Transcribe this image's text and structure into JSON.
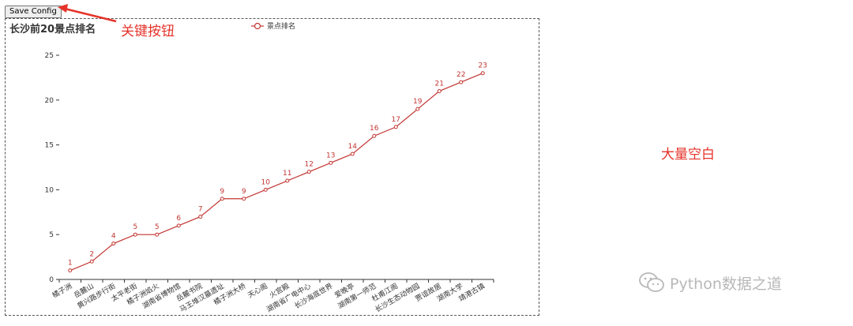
{
  "toolbar": {
    "save_label": "Save Config"
  },
  "annotations": {
    "key_button": "关键按钮",
    "blank_area": "大量空白"
  },
  "watermark": {
    "text": "Python数据之道",
    "icon": "wechat-icon"
  },
  "colors": {
    "series": "#c23531",
    "annotation": "#e5332a",
    "axis": "#333333"
  },
  "chart_data": {
    "type": "line",
    "title": "长沙前20景点排名",
    "legend": {
      "entries": [
        "景点排名"
      ],
      "placement": "top-center"
    },
    "categories": [
      "橘子洲",
      "岳麓山",
      "黄兴路步行街",
      "太平老街",
      "橘子洲焰火",
      "湖南省博物馆",
      "岳麓书院",
      "马王堆汉墓遗址",
      "橘子洲大桥",
      "天心阁",
      "火宫殿",
      "湖南省广电中心",
      "长沙海底世界",
      "爱晚亭",
      "湖南第一师范",
      "杜甫江阁",
      "长沙生态动物园",
      "贾谊故居",
      "湖南大学",
      "靖港古镇"
    ],
    "series": [
      {
        "name": "景点排名",
        "values": [
          1,
          2,
          4,
          5,
          5,
          6,
          7,
          9,
          9,
          10,
          11,
          12,
          13,
          14,
          16,
          17,
          19,
          21,
          22,
          23
        ]
      }
    ],
    "ylim": [
      0,
      25
    ],
    "yticks": [
      0,
      5,
      10,
      15,
      20,
      25
    ],
    "xlabel": "",
    "ylabel": "",
    "grid": false,
    "data_labels": true
  }
}
